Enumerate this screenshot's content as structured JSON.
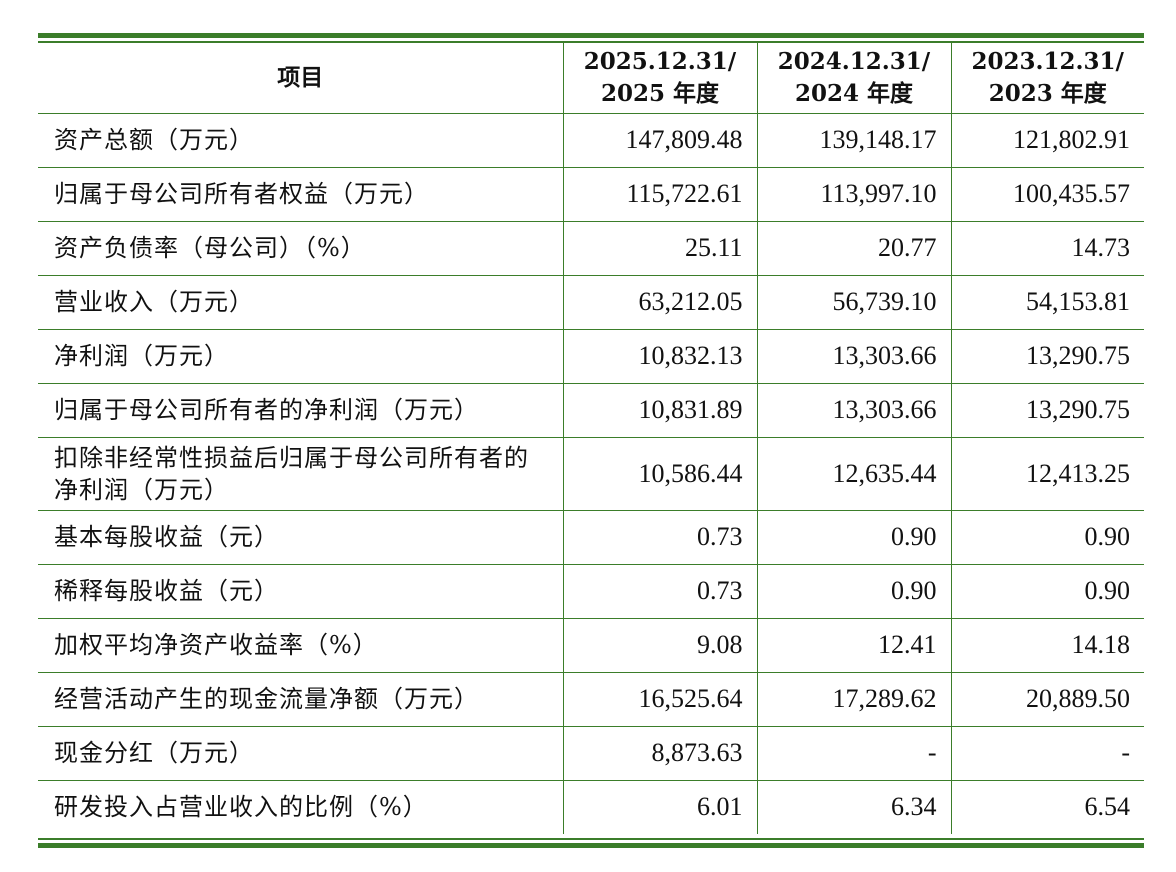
{
  "table": {
    "headers": {
      "item": "项目",
      "col1_line1": "2025.12.31/",
      "col1_line2": "2025 年度",
      "col2_line1": "2024.12.31/",
      "col2_line2": "2024 年度",
      "col3_line1": "2023.12.31/",
      "col3_line2": "2023 年度"
    },
    "rows": [
      {
        "label": "资产总额（万元）",
        "v2025": "147,809.48",
        "v2024": "139,148.17",
        "v2023": "121,802.91"
      },
      {
        "label": "归属于母公司所有者权益（万元）",
        "v2025": "115,722.61",
        "v2024": "113,997.10",
        "v2023": "100,435.57"
      },
      {
        "label": "资产负债率（母公司）（%）",
        "v2025": "25.11",
        "v2024": "20.77",
        "v2023": "14.73"
      },
      {
        "label": "营业收入（万元）",
        "v2025": "63,212.05",
        "v2024": "56,739.10",
        "v2023": "54,153.81"
      },
      {
        "label": "净利润（万元）",
        "v2025": "10,832.13",
        "v2024": "13,303.66",
        "v2023": "13,290.75"
      },
      {
        "label": "归属于母公司所有者的净利润（万元）",
        "v2025": "10,831.89",
        "v2024": "13,303.66",
        "v2023": "13,290.75"
      },
      {
        "label": "扣除非经常性损益后归属于母公司所有者的净利润（万元）",
        "v2025": "10,586.44",
        "v2024": "12,635.44",
        "v2023": "12,413.25"
      },
      {
        "label": "基本每股收益（元）",
        "v2025": "0.73",
        "v2024": "0.90",
        "v2023": "0.90"
      },
      {
        "label": "稀释每股收益（元）",
        "v2025": "0.73",
        "v2024": "0.90",
        "v2023": "0.90"
      },
      {
        "label": "加权平均净资产收益率（%）",
        "v2025": "9.08",
        "v2024": "12.41",
        "v2023": "14.18"
      },
      {
        "label": "经营活动产生的现金流量净额（万元）",
        "v2025": "16,525.64",
        "v2024": "17,289.62",
        "v2023": "20,889.50"
      },
      {
        "label": "现金分红（万元）",
        "v2025": "8,873.63",
        "v2024": "-",
        "v2023": "-"
      },
      {
        "label": "研发投入占营业收入的比例（%）",
        "v2025": "6.01",
        "v2024": "6.34",
        "v2023": "6.54"
      }
    ]
  },
  "colors": {
    "rule": "#3b7d2a",
    "text": "#111111"
  }
}
